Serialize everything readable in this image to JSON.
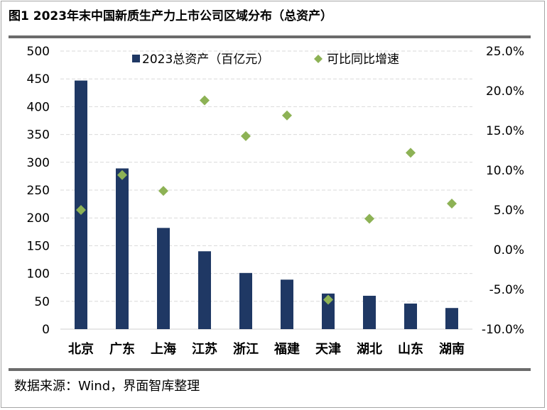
{
  "title": "图1 2023年末中国新质生产力上市公司区域分布（总资产）",
  "source": "数据来源：Wind，界面智库整理",
  "colors": {
    "bar": "#1f3864",
    "marker": "#8db255",
    "grid": "#d9d9d9",
    "rule": "#6b6b6b"
  },
  "chart_data": {
    "type": "bar",
    "categories": [
      "北京",
      "广东",
      "上海",
      "江苏",
      "浙江",
      "福建",
      "天津",
      "湖北",
      "山东",
      "湖南"
    ],
    "series": [
      {
        "name": "2023总资产（百亿元）",
        "type": "bar",
        "axis": "left",
        "values": [
          447,
          289,
          182,
          140,
          101,
          89,
          64,
          60,
          46,
          38
        ]
      },
      {
        "name": "可比同比增速",
        "type": "scatter",
        "marker": "diamond",
        "axis": "right",
        "values": [
          5.0,
          9.4,
          7.4,
          18.8,
          14.3,
          16.9,
          -6.3,
          3.9,
          12.2,
          5.8
        ]
      }
    ],
    "left_axis": {
      "ylim": [
        0,
        500
      ],
      "ticks": [
        "0",
        "50",
        "100",
        "150",
        "200",
        "250",
        "300",
        "350",
        "400",
        "450",
        "500"
      ]
    },
    "right_axis": {
      "ylim": [
        -10,
        25
      ],
      "ticks": [
        "-10.0%",
        "-5.0%",
        "0.0%",
        "5.0%",
        "10.0%",
        "15.0%",
        "20.0%",
        "25.0%"
      ]
    },
    "grid": true,
    "legend_position": "top"
  }
}
